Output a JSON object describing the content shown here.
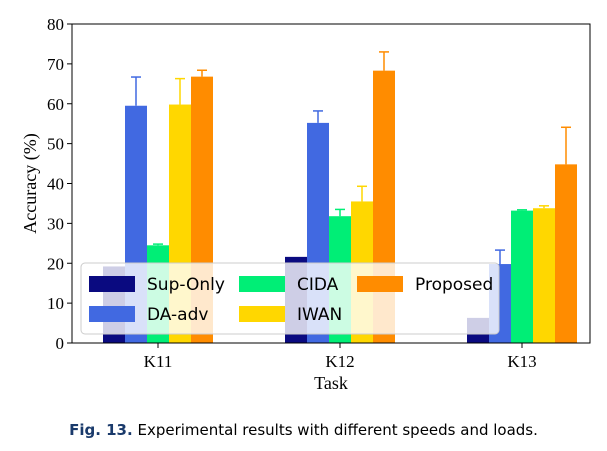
{
  "caption": {
    "label": "Fig. 13.",
    "text": "Experimental results with different speeds and loads."
  },
  "chart_data": {
    "type": "bar",
    "xlabel": "Task",
    "ylabel": "Accuracy (%)",
    "ylim": [
      0,
      80
    ],
    "yticks": [
      0,
      10,
      20,
      30,
      40,
      50,
      60,
      70,
      80
    ],
    "categories": [
      "K11",
      "K12",
      "K13"
    ],
    "legend_placement": "lower-left",
    "error_bars": true,
    "series": [
      {
        "name": "Sup-Only",
        "color": "#0a0a80",
        "values": [
          19.2,
          21.6,
          6.3
        ],
        "errors": [
          0,
          0,
          0
        ]
      },
      {
        "name": "DA-adv",
        "color": "#4169e1",
        "values": [
          59.5,
          55.2,
          19.8
        ],
        "errors": [
          7.2,
          3.0,
          3.5
        ]
      },
      {
        "name": "CIDA",
        "color": "#00ee76",
        "values": [
          24.5,
          31.8,
          33.2
        ],
        "errors": [
          0.3,
          1.7,
          0.2
        ]
      },
      {
        "name": "IWAN",
        "color": "#ffd700",
        "values": [
          59.8,
          35.5,
          33.8
        ],
        "errors": [
          6.5,
          3.8,
          0.6
        ]
      },
      {
        "name": "Proposed",
        "color": "#ff8c00",
        "values": [
          66.8,
          68.3,
          44.8
        ],
        "errors": [
          1.6,
          4.7,
          9.3
        ]
      }
    ]
  }
}
